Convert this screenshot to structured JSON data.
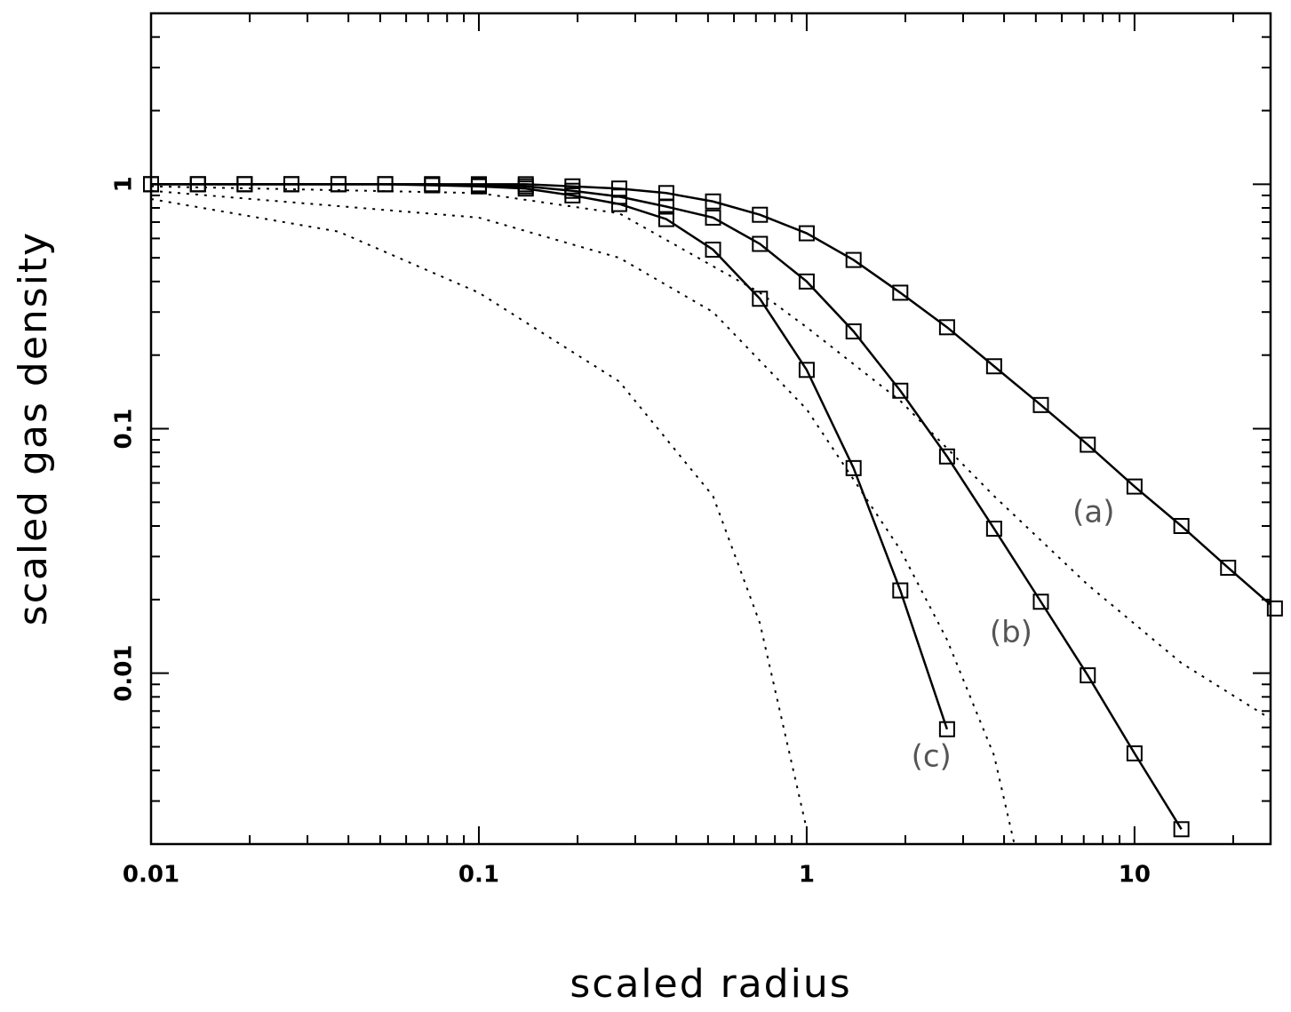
{
  "chart_data": {
    "type": "line",
    "xlabel": "scaled radius",
    "ylabel": "scaled gas density",
    "xscale": "log",
    "yscale": "log",
    "xlim": [
      0.01,
      26
    ],
    "ylim": [
      0.002,
      5
    ],
    "xticks": [
      0.01,
      0.1,
      1,
      10
    ],
    "yticks": [
      0.01,
      0.1,
      1
    ],
    "xminorticks": [
      0.02,
      0.03,
      0.04,
      0.05,
      0.06,
      0.07,
      0.08,
      0.09,
      0.2,
      0.3,
      0.4,
      0.5,
      0.6,
      0.7,
      0.8,
      0.9,
      2,
      3,
      4,
      5,
      6,
      7,
      8,
      9,
      20
    ],
    "yminorticks": [
      0.003,
      0.004,
      0.005,
      0.006,
      0.007,
      0.008,
      0.009,
      0.02,
      0.03,
      0.04,
      0.05,
      0.06,
      0.07,
      0.08,
      0.09,
      0.2,
      0.3,
      0.4,
      0.5,
      0.6,
      0.7,
      0.8,
      0.9,
      2,
      3,
      4,
      5
    ],
    "series": [
      {
        "color": "#000000",
        "line_style": "solid",
        "marker": "square",
        "x": [
          0.01,
          0.0139,
          0.0193,
          0.0268,
          0.0373,
          0.0518,
          0.072,
          0.1,
          0.139,
          0.193,
          0.268,
          0.373,
          0.518,
          0.72,
          1.0,
          1.39,
          1.93,
          2.68,
          3.73,
          5.18,
          7.2,
          10,
          13.9,
          19.3,
          26.8
        ],
        "values": [
          1,
          1,
          1,
          1,
          1,
          1,
          1,
          1,
          1,
          0.98,
          0.96,
          0.92,
          0.85,
          0.75,
          0.63,
          0.49,
          0.36,
          0.26,
          0.18,
          0.125,
          0.086,
          0.058,
          0.04,
          0.027,
          0.0184
        ]
      },
      {
        "color": "#000000",
        "line_style": "solid",
        "marker": "square",
        "x": [
          0.01,
          0.0139,
          0.0193,
          0.0268,
          0.0373,
          0.0518,
          0.072,
          0.1,
          0.139,
          0.193,
          0.268,
          0.373,
          0.518,
          0.72,
          1.0,
          1.39,
          1.93,
          2.68,
          3.73,
          5.18,
          7.2,
          10,
          13.9
        ],
        "values": [
          1,
          1,
          1,
          1,
          1,
          1,
          1,
          0.99,
          0.98,
          0.94,
          0.89,
          0.81,
          0.73,
          0.57,
          0.4,
          0.25,
          0.143,
          0.077,
          0.039,
          0.0196,
          0.0098,
          0.0047,
          0.0023
        ]
      },
      {
        "color": "#000000",
        "line_style": "solid",
        "marker": "square",
        "x": [
          0.01,
          0.0139,
          0.0193,
          0.0268,
          0.0373,
          0.0518,
          0.072,
          0.1,
          0.139,
          0.193,
          0.268,
          0.373,
          0.518,
          0.72,
          1.0,
          1.39,
          1.93,
          2.68
        ],
        "values": [
          1,
          1,
          1,
          1,
          1,
          1,
          0.99,
          0.98,
          0.96,
          0.9,
          0.83,
          0.72,
          0.54,
          0.34,
          0.174,
          0.069,
          0.0218,
          0.0059
        ]
      },
      {
        "color": "#000000",
        "line_style": "dotted",
        "x": [
          0.01,
          0.0373,
          0.1,
          0.268,
          0.518,
          0.72,
          1.0
        ],
        "values": [
          0.87,
          0.64,
          0.36,
          0.156,
          0.053,
          0.016,
          0.0023
        ]
      },
      {
        "color": "#000000",
        "line_style": "dotted",
        "x": [
          0.01,
          0.1,
          0.268,
          0.518,
          1.0,
          1.93,
          2.68,
          3.73,
          4.3
        ],
        "values": [
          0.94,
          0.73,
          0.5,
          0.3,
          0.12,
          0.032,
          0.0137,
          0.0046,
          0.002
        ]
      },
      {
        "color": "#000000",
        "line_style": "dotted",
        "x": [
          0.01,
          0.1,
          0.268,
          0.72,
          1.0,
          1.93,
          3.73,
          7.2,
          13.9,
          26
        ],
        "values": [
          0.98,
          0.92,
          0.76,
          0.36,
          0.26,
          0.13,
          0.053,
          0.023,
          0.011,
          0.0065
        ]
      }
    ],
    "annotations": [
      {
        "text": "(a)",
        "x": 7.5,
        "y": 0.045
      },
      {
        "text": "(b)",
        "x": 4.2,
        "y": 0.0145
      },
      {
        "text": "(c)",
        "x": 2.4,
        "y": 0.0045
      }
    ]
  }
}
